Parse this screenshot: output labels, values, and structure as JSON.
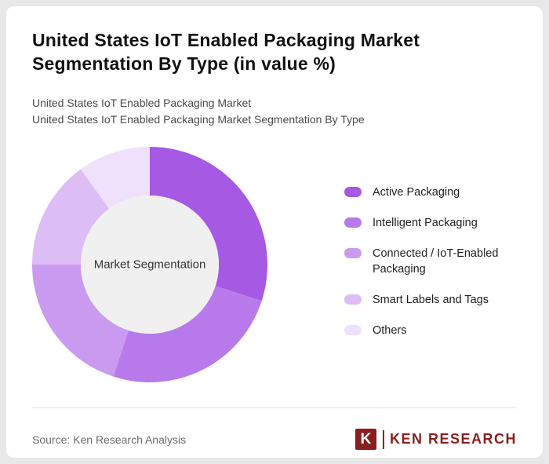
{
  "page": {
    "title": "United States IoT Enabled Packaging Market Segmentation By Type (in value %)",
    "subtitle1": "United States IoT Enabled Packaging Market",
    "subtitle2": "United States IoT Enabled Packaging Market Segmentation By Type",
    "source": "Source: Ken Research Analysis",
    "logo": {
      "mark": "K",
      "text": "KEN RESEARCH"
    }
  },
  "chart_data": {
    "type": "pie",
    "donut": true,
    "center_label": "Market Segmentation",
    "categories": [
      "Active Packaging",
      "Intelligent Packaging",
      "Connected / IoT-Enabled Packaging",
      "Smart Labels and Tags",
      "Others"
    ],
    "values": [
      30,
      25,
      20,
      15,
      10
    ],
    "colors": [
      "#a659e3",
      "#b87aeb",
      "#c99af0",
      "#ddbdf6",
      "#efe0fb"
    ],
    "center_fill": "#f0f0f0",
    "start_angle_deg": 0,
    "direction": "clockwise",
    "legend_position": "right"
  }
}
